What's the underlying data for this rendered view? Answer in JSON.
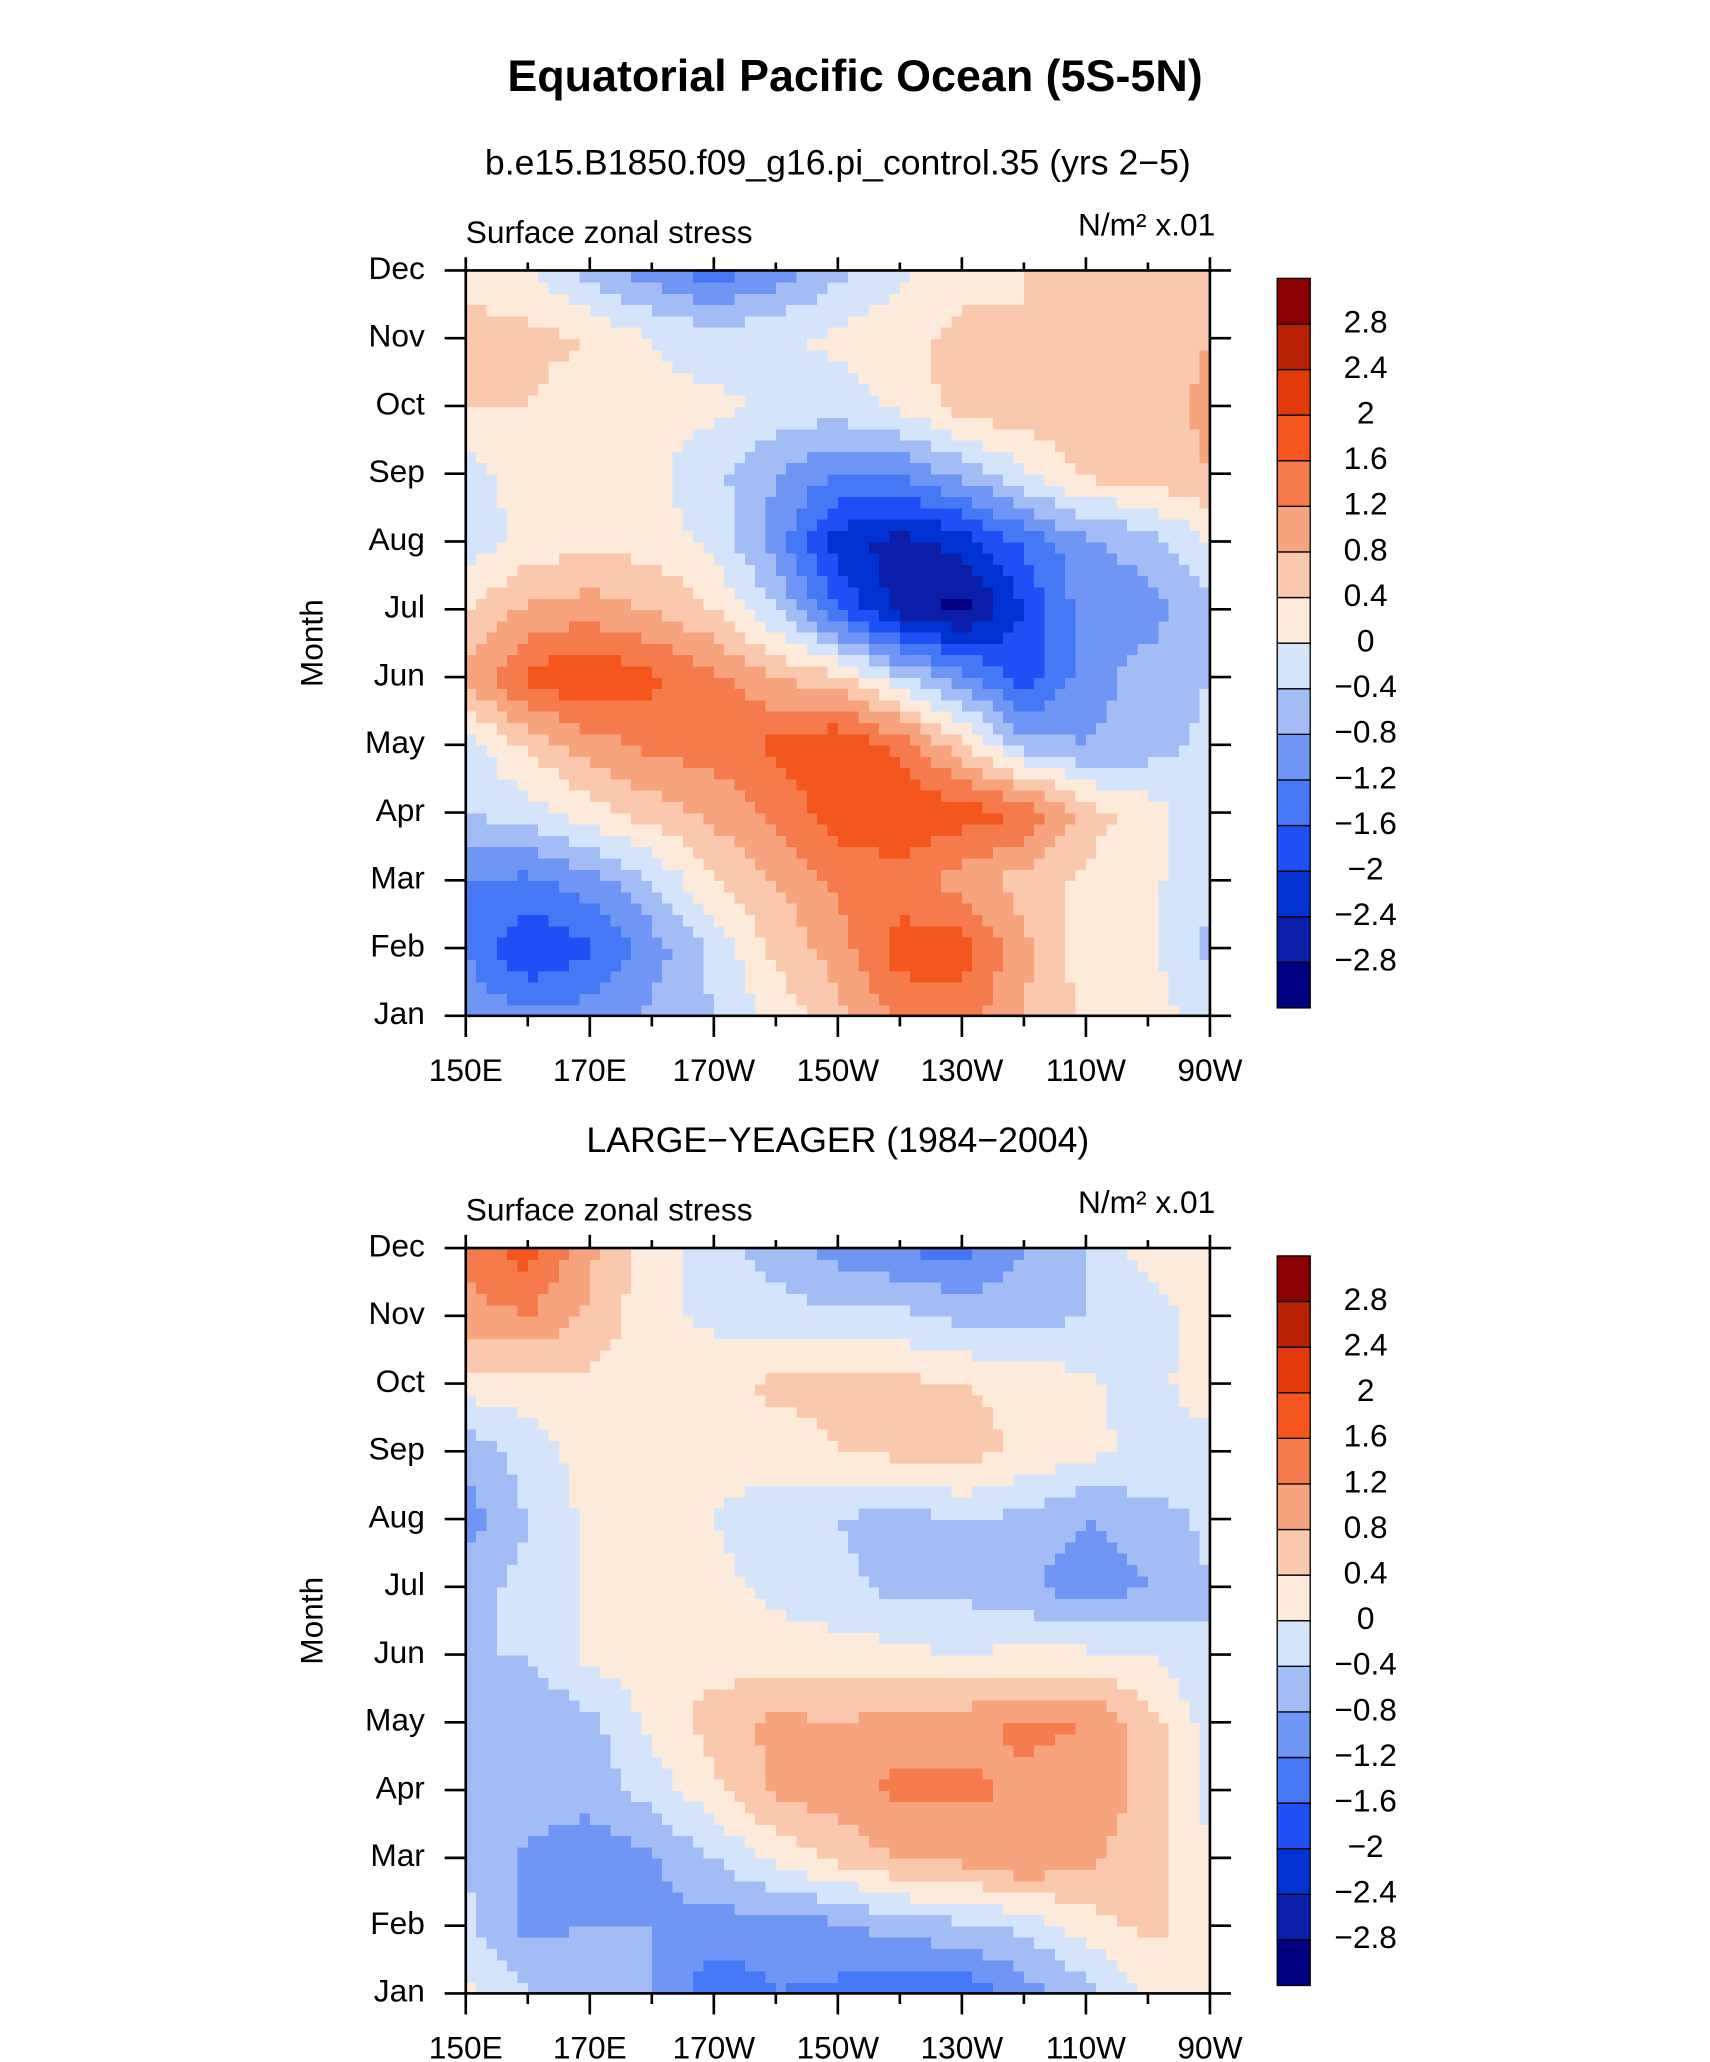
{
  "title": "Equatorial Pacific Ocean (5S-5N)",
  "chart_data": [
    {
      "type": "contour",
      "title": "b.e15.B1850.f09_g16.pi_control.35 (yrs 2−5)",
      "left_label": "Surface zonal stress",
      "right_label": "N/m² x.01",
      "ylabel": "Month",
      "categories": [
        "Jan",
        "Feb",
        "Mar",
        "Apr",
        "May",
        "Jun",
        "Jul",
        "Aug",
        "Sep",
        "Oct",
        "Nov",
        "Dec"
      ],
      "x": [
        150,
        160,
        170,
        180,
        190,
        200,
        210,
        220,
        230,
        240,
        250,
        260,
        270
      ],
      "xlim": [
        150,
        270
      ],
      "xticks": [
        {
          "value": 150,
          "label": "150E"
        },
        {
          "value": 170,
          "label": "170E"
        },
        {
          "value": 190,
          "label": "170W"
        },
        {
          "value": 210,
          "label": "150W"
        },
        {
          "value": 230,
          "label": "130W"
        },
        {
          "value": 250,
          "label": "110W"
        },
        {
          "value": 270,
          "label": "90W"
        }
      ],
      "xminorticks": [
        160,
        180,
        200,
        220,
        240,
        260
      ],
      "z": [
        [
          -0.9,
          -1.1,
          -1.0,
          -0.7,
          -0.4,
          0.1,
          0.7,
          1.3,
          1.4,
          0.8,
          0.3,
          0.2,
          -0.2
        ],
        [
          -1.2,
          -2.0,
          -1.7,
          -1.0,
          -0.3,
          0.5,
          1.0,
          1.8,
          1.8,
          0.9,
          0.2,
          0.1,
          -0.5
        ],
        [
          -1.2,
          -1.3,
          -1.0,
          -0.4,
          0.4,
          0.8,
          1.3,
          1.4,
          1.0,
          0.6,
          0.3,
          0.1,
          -0.3
        ],
        [
          -0.4,
          -0.2,
          0.2,
          0.6,
          0.9,
          1.3,
          1.8,
          2.0,
          1.8,
          1.6,
          0.6,
          0.2,
          -0.3
        ],
        [
          -0.2,
          0.5,
          1.0,
          1.3,
          1.4,
          1.7,
          2.0,
          1.5,
          0.5,
          -0.6,
          -0.8,
          -0.6,
          -0.3
        ],
        [
          0.9,
          1.7,
          2.0,
          1.7,
          1.3,
          0.8,
          0.5,
          -0.3,
          -1.0,
          -1.8,
          -1.0,
          -0.6,
          -0.4
        ],
        [
          0.4,
          0.9,
          1.0,
          0.8,
          0.4,
          -0.4,
          -1.6,
          -2.6,
          -3.0,
          -2.0,
          -1.0,
          -1.0,
          -0.5
        ],
        [
          -0.2,
          0.1,
          0.3,
          0.2,
          -0.1,
          -1.0,
          -2.2,
          -2.6,
          -2.2,
          -1.5,
          -0.9,
          -0.6,
          0.0
        ],
        [
          -0.2,
          0.2,
          0.2,
          0.1,
          -0.3,
          -0.8,
          -1.2,
          -1.2,
          -0.7,
          -0.1,
          0.5,
          0.6,
          0.8
        ],
        [
          0.4,
          0.4,
          0.2,
          0.1,
          0.1,
          -0.1,
          -0.2,
          0.1,
          0.6,
          0.7,
          0.6,
          0.6,
          0.9
        ],
        [
          0.6,
          0.5,
          0.4,
          0.0,
          -0.2,
          -0.1,
          0.1,
          0.3,
          0.5,
          0.4,
          0.5,
          0.6,
          0.8
        ],
        [
          0.2,
          0.1,
          -0.6,
          -1.0,
          -1.4,
          -1.0,
          -0.5,
          -0.1,
          0.3,
          0.4,
          0.5,
          0.6,
          0.8
        ]
      ],
      "levels": [
        {
          "value": -2.8,
          "label": "−2.8"
        },
        {
          "value": -2.4,
          "label": "−2.4"
        },
        {
          "value": -2,
          "label": "−2"
        },
        {
          "value": -1.6,
          "label": "−1.6"
        },
        {
          "value": -1.2,
          "label": "−1.2"
        },
        {
          "value": -0.8,
          "label": "−0.8"
        },
        {
          "value": -0.4,
          "label": "−0.4"
        },
        0,
        0.4,
        0.8,
        1.2,
        1.6,
        2,
        2.4,
        2.8
      ],
      "colors": [
        "#000080",
        "#0a1eaa",
        "#0032d2",
        "#1e50f5",
        "#4678f5",
        "#7096f5",
        "#a4bcf5",
        "#d4e4fa",
        "#fdeadb",
        "#fac8ac",
        "#f7a47e",
        "#f57a4c",
        "#f5561e",
        "#e03a0a",
        "#b82204",
        "#8b0000"
      ]
    },
    {
      "type": "contour",
      "title": "LARGE−YEAGER (1984−2004)",
      "left_label": "Surface zonal stress",
      "right_label": "N/m² x.01",
      "ylabel": "Month",
      "categories": [
        "Jan",
        "Feb",
        "Mar",
        "Apr",
        "May",
        "Jun",
        "Jul",
        "Aug",
        "Sep",
        "Oct",
        "Nov",
        "Dec"
      ],
      "x": [
        150,
        160,
        170,
        180,
        190,
        200,
        210,
        220,
        230,
        240,
        250,
        260,
        270
      ],
      "xlim": [
        150,
        270
      ],
      "xticks": [
        {
          "value": 150,
          "label": "150E"
        },
        {
          "value": 170,
          "label": "170E"
        },
        {
          "value": 190,
          "label": "170W"
        },
        {
          "value": 210,
          "label": "150W"
        },
        {
          "value": 230,
          "label": "130W"
        },
        {
          "value": 250,
          "label": "110W"
        },
        {
          "value": 270,
          "label": "90W"
        }
      ],
      "xminorticks": [
        160,
        180,
        200,
        220,
        240,
        260
      ],
      "z": [
        [
          0.1,
          -0.4,
          -0.5,
          -0.8,
          -1.5,
          -1.2,
          -1.3,
          -1.6,
          -1.5,
          -1.0,
          -0.6,
          0.1,
          0.2
        ],
        [
          -0.3,
          -0.9,
          -0.8,
          -0.8,
          -1.0,
          -1.0,
          -0.9,
          -0.6,
          -0.5,
          -0.3,
          0.2,
          0.5,
          0.2
        ],
        [
          -0.4,
          -0.9,
          -1.0,
          -0.9,
          -0.4,
          0.1,
          0.5,
          0.8,
          0.9,
          1.2,
          0.9,
          0.6,
          0.1
        ],
        [
          -0.4,
          -0.6,
          -0.7,
          -0.2,
          0.3,
          0.9,
          1.0,
          1.3,
          1.3,
          1.1,
          1.0,
          0.7,
          -0.2
        ],
        [
          -0.4,
          -0.8,
          -0.5,
          0.1,
          0.6,
          0.9,
          0.8,
          1.0,
          1.0,
          1.3,
          1.2,
          0.6,
          -0.2
        ],
        [
          -0.4,
          -0.4,
          0.1,
          0.2,
          0.2,
          0.2,
          0.2,
          0.1,
          0.0,
          0.1,
          0.1,
          0.0,
          -0.4
        ],
        [
          -0.5,
          -0.3,
          0.1,
          0.2,
          0.1,
          -0.1,
          -0.3,
          -0.5,
          -0.5,
          -0.7,
          -1.1,
          -0.8,
          -0.4
        ],
        [
          -1.0,
          -0.4,
          0.1,
          0.1,
          0.0,
          -0.2,
          -0.4,
          -0.6,
          -0.4,
          -0.5,
          -0.8,
          -0.6,
          -0.3
        ],
        [
          -0.7,
          -0.2,
          0.2,
          0.2,
          0.1,
          0.2,
          0.4,
          0.5,
          0.6,
          0.3,
          0.1,
          -0.1,
          -0.2
        ],
        [
          0.2,
          0.2,
          0.3,
          0.2,
          0.3,
          0.5,
          0.5,
          0.5,
          0.4,
          0.3,
          0.1,
          -0.2,
          0.3
        ],
        [
          1.0,
          1.2,
          0.7,
          0.1,
          -0.1,
          -0.2,
          -0.3,
          -0.3,
          -0.5,
          -0.6,
          -0.4,
          -0.2,
          0.2
        ],
        [
          1.4,
          1.8,
          0.9,
          0.2,
          -0.2,
          -0.6,
          -1.0,
          -1.2,
          -1.4,
          -0.8,
          -0.4,
          0.2,
          0.2
        ]
      ],
      "levels": [
        {
          "value": -2.8,
          "label": "−2.8"
        },
        {
          "value": -2.4,
          "label": "−2.4"
        },
        {
          "value": -2,
          "label": "−2"
        },
        {
          "value": -1.6,
          "label": "−1.6"
        },
        {
          "value": -1.2,
          "label": "−1.2"
        },
        {
          "value": -0.8,
          "label": "−0.8"
        },
        {
          "value": -0.4,
          "label": "−0.4"
        },
        0,
        0.4,
        0.8,
        1.2,
        1.6,
        2,
        2.4,
        2.8
      ],
      "colors": [
        "#000080",
        "#0a1eaa",
        "#0032d2",
        "#1e50f5",
        "#4678f5",
        "#7096f5",
        "#a4bcf5",
        "#d4e4fa",
        "#fdeadb",
        "#fac8ac",
        "#f7a47e",
        "#f57a4c",
        "#f5561e",
        "#e03a0a",
        "#b82204",
        "#8b0000"
      ]
    }
  ]
}
